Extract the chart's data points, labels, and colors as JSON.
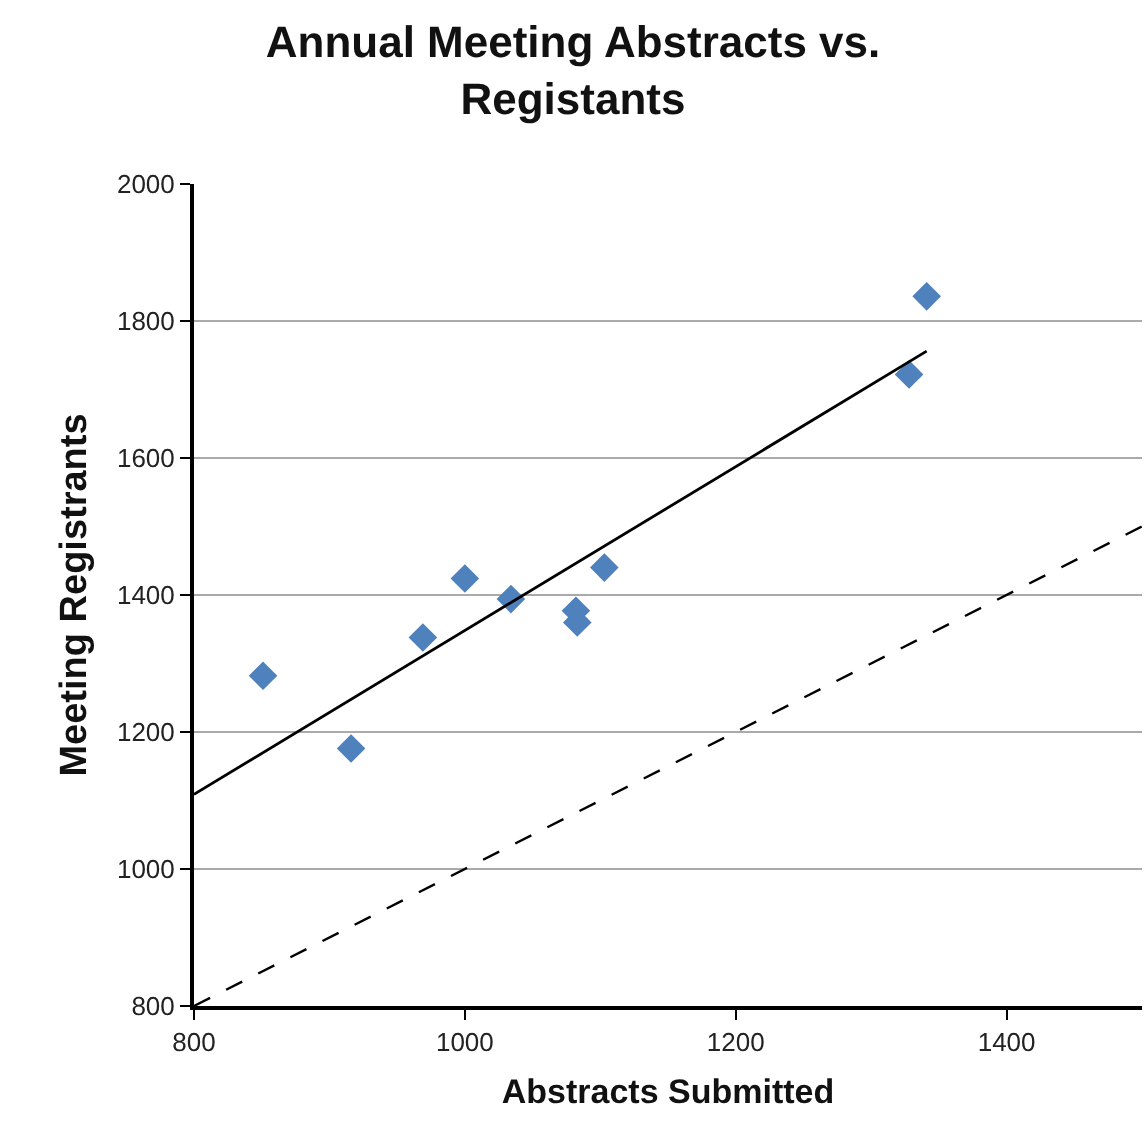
{
  "chart_data": {
    "type": "scatter",
    "title": "Annual Meeting Abstracts vs. Registants",
    "xlabel": "Abstracts Submitted",
    "ylabel": "Meeting Registrants",
    "xlim": [
      800,
      1500
    ],
    "xticks": [
      800,
      1000,
      1200,
      1400
    ],
    "ylim": [
      800,
      2000
    ],
    "yticks": [
      800,
      1000,
      1200,
      1400,
      1600,
      1800,
      2000
    ],
    "grid": "y",
    "marker": "diamond",
    "series": [
      {
        "color": "#4f81bd",
        "x": [
          851,
          916,
          969,
          1000,
          1034,
          1082,
          1083,
          1103,
          1328,
          1341
        ],
        "values": [
          1282,
          1176,
          1338,
          1424,
          1394,
          1377,
          1360,
          1440,
          1722,
          1836
        ]
      },
      {
        "type": "line",
        "color": "#000000",
        "line_style": "solid",
        "marker": "none",
        "x": [
          800,
          1341
        ],
        "values": [
          1109,
          1756
        ]
      },
      {
        "type": "line",
        "color": "#000000",
        "line_style": "dashed",
        "marker": "none",
        "x": [
          800,
          1500
        ],
        "values": [
          800,
          1500
        ]
      }
    ]
  }
}
